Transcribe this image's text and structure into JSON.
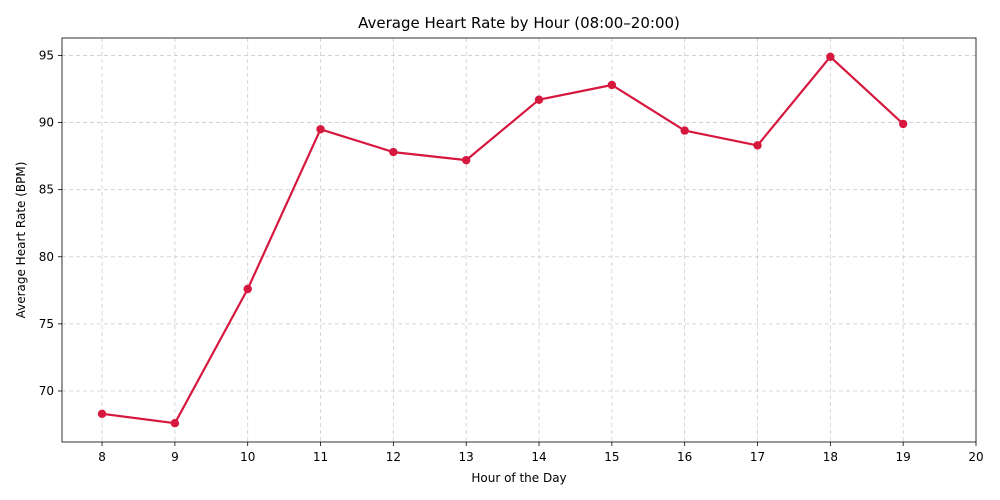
{
  "chart_data": {
    "type": "line",
    "title": "Average Heart Rate by Hour (08:00–20:00)",
    "xlabel": "Hour of the Day",
    "ylabel": "Average Heart Rate (BPM)",
    "xlim": [
      7.45,
      20.0
    ],
    "ylim": [
      66.2,
      96.3
    ],
    "xticks": [
      8,
      9,
      10,
      11,
      12,
      13,
      14,
      15,
      16,
      17,
      18,
      19,
      20
    ],
    "yticks": [
      70,
      75,
      80,
      85,
      90,
      95
    ],
    "grid": true,
    "line_color": "#d6183e",
    "series": [
      {
        "x": [
          8,
          9,
          10,
          11,
          12,
          13,
          14,
          15,
          16,
          17,
          18,
          19
        ],
        "y": [
          68.3,
          67.6,
          77.6,
          89.5,
          87.8,
          87.2,
          91.7,
          92.8,
          89.4,
          88.3,
          94.9,
          89.9
        ]
      }
    ]
  }
}
